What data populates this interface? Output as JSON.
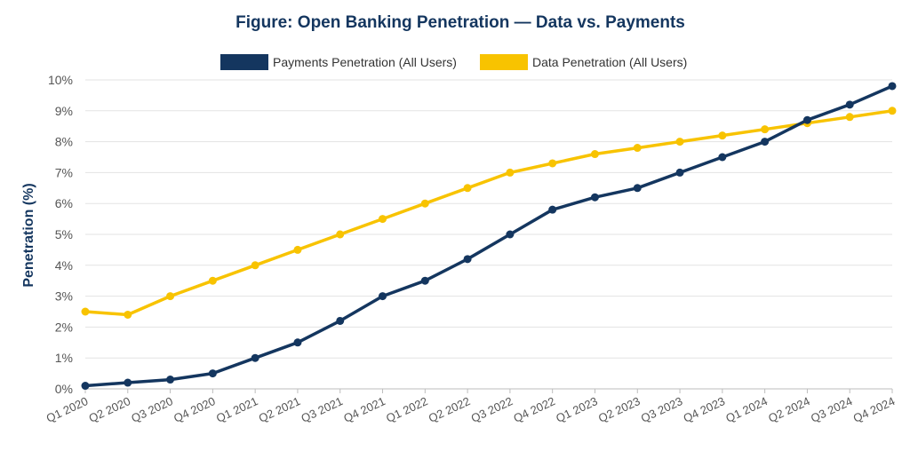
{
  "chart_data": {
    "type": "line",
    "title": "Figure: Open Banking Penetration — Data vs. Payments",
    "xlabel": "",
    "ylabel": "Penetration (%)",
    "ylim": [
      0,
      10
    ],
    "yticks": [
      "0%",
      "1%",
      "2%",
      "3%",
      "4%",
      "5%",
      "6%",
      "7%",
      "8%",
      "9%",
      "10%"
    ],
    "grid": true,
    "legend_position": "top-center",
    "categories": [
      "Q1 2020",
      "Q2 2020",
      "Q3 2020",
      "Q4 2020",
      "Q1 2021",
      "Q2 2021",
      "Q3 2021",
      "Q4 2021",
      "Q1 2022",
      "Q2 2022",
      "Q3 2022",
      "Q4 2022",
      "Q1 2023",
      "Q2 2023",
      "Q3 2023",
      "Q4 2023",
      "Q1 2024",
      "Q2 2024",
      "Q3 2024",
      "Q4 2024"
    ],
    "series": [
      {
        "name": "Payments Penetration (All Users)",
        "color": "#14365f",
        "values": [
          0.1,
          0.2,
          0.3,
          0.5,
          1.0,
          1.5,
          2.2,
          3.0,
          3.5,
          4.2,
          5.0,
          5.8,
          6.2,
          6.5,
          7.0,
          7.5,
          8.0,
          8.7,
          9.2,
          9.8
        ]
      },
      {
        "name": "Data Penetration (All Users)",
        "color": "#f8c300",
        "values": [
          2.5,
          2.4,
          3.0,
          3.5,
          4.0,
          4.5,
          5.0,
          5.5,
          6.0,
          6.5,
          7.0,
          7.3,
          7.6,
          7.8,
          8.0,
          8.2,
          8.4,
          8.6,
          8.8,
          9.0
        ]
      }
    ]
  }
}
